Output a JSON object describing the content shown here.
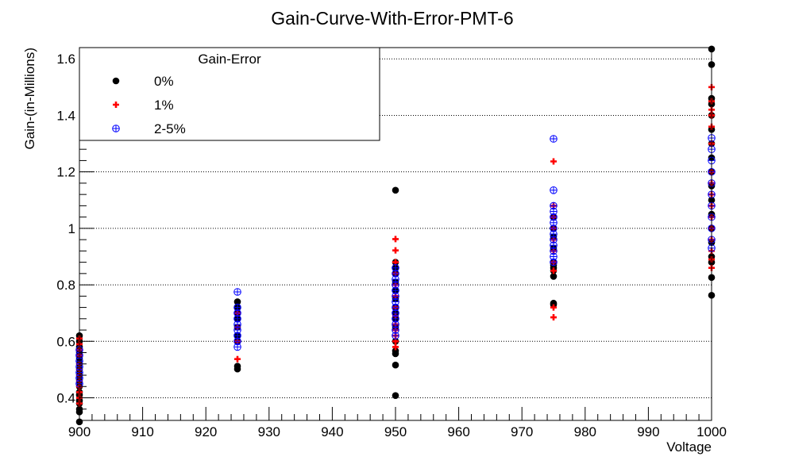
{
  "chart_data": {
    "type": "scatter",
    "title": "Gain-Curve-With-Error-PMT-6",
    "xlabel": "Voltage",
    "ylabel": "Gain-(in-Millions)",
    "xlim": [
      900,
      1000
    ],
    "ylim": [
      0.32,
      1.64
    ],
    "x_ticks": [
      900,
      910,
      920,
      930,
      940,
      950,
      960,
      970,
      980,
      990,
      1000
    ],
    "y_ticks": [
      0.4,
      0.6,
      0.8,
      1,
      1.2,
      1.4,
      1.6
    ],
    "y_tick_labels": [
      "0.4",
      "0.6",
      "0.8",
      "1",
      "1.2",
      "1.4",
      "1.6"
    ],
    "grid": "horizontal dotted",
    "legend": {
      "title": "Gain-Error",
      "placement": "top-left"
    },
    "series": [
      {
        "name": "0%",
        "marker": "filled-circle",
        "color": "#000000",
        "points": [
          [
            900,
            0.315
          ],
          [
            900,
            0.35
          ],
          [
            900,
            0.36
          ],
          [
            900,
            0.38
          ],
          [
            900,
            0.39
          ],
          [
            900,
            0.41
          ],
          [
            900,
            0.42
          ],
          [
            900,
            0.44
          ],
          [
            900,
            0.46
          ],
          [
            900,
            0.48
          ],
          [
            900,
            0.5
          ],
          [
            900,
            0.52
          ],
          [
            900,
            0.54
          ],
          [
            900,
            0.56
          ],
          [
            900,
            0.58
          ],
          [
            900,
            0.6
          ],
          [
            900,
            0.62
          ],
          [
            925,
            0.502
          ],
          [
            925,
            0.512
          ],
          [
            925,
            0.6
          ],
          [
            925,
            0.62
          ],
          [
            925,
            0.65
          ],
          [
            925,
            0.68
          ],
          [
            925,
            0.7
          ],
          [
            925,
            0.72
          ],
          [
            925,
            0.74
          ],
          [
            950,
            0.408
          ],
          [
            950,
            0.516
          ],
          [
            950,
            0.556
          ],
          [
            950,
            0.566
          ],
          [
            950,
            0.6
          ],
          [
            950,
            0.65
          ],
          [
            950,
            0.68
          ],
          [
            950,
            0.7
          ],
          [
            950,
            0.72
          ],
          [
            950,
            0.75
          ],
          [
            950,
            0.78
          ],
          [
            950,
            0.81
          ],
          [
            950,
            0.84
          ],
          [
            950,
            0.86
          ],
          [
            950,
            0.88
          ],
          [
            950,
            1.135
          ],
          [
            975,
            0.73
          ],
          [
            975,
            0.735
          ],
          [
            975,
            0.83
          ],
          [
            975,
            0.85
          ],
          [
            975,
            0.86
          ],
          [
            975,
            0.87
          ],
          [
            975,
            0.88
          ],
          [
            975,
            0.93
          ],
          [
            975,
            0.97
          ],
          [
            975,
            1.0
          ],
          [
            975,
            1.04
          ],
          [
            1000,
            0.763
          ],
          [
            1000,
            0.826
          ],
          [
            1000,
            0.88
          ],
          [
            1000,
            0.9
          ],
          [
            1000,
            0.95
          ],
          [
            1000,
            1.0
          ],
          [
            1000,
            1.05
          ],
          [
            1000,
            1.1
          ],
          [
            1000,
            1.15
          ],
          [
            1000,
            1.2
          ],
          [
            1000,
            1.25
          ],
          [
            1000,
            1.3
          ],
          [
            1000,
            1.35
          ],
          [
            1000,
            1.4
          ],
          [
            1000,
            1.44
          ],
          [
            1000,
            1.46
          ],
          [
            1000,
            1.58
          ],
          [
            1000,
            1.635
          ]
        ]
      },
      {
        "name": "1%",
        "marker": "plus",
        "color": "#ff0000",
        "points": [
          [
            900,
            0.38
          ],
          [
            900,
            0.4
          ],
          [
            900,
            0.42
          ],
          [
            900,
            0.44
          ],
          [
            900,
            0.46
          ],
          [
            900,
            0.48
          ],
          [
            900,
            0.5
          ],
          [
            900,
            0.52
          ],
          [
            900,
            0.55
          ],
          [
            900,
            0.57
          ],
          [
            900,
            0.59
          ],
          [
            900,
            0.61
          ],
          [
            925,
            0.537
          ],
          [
            925,
            0.6
          ],
          [
            925,
            0.65
          ],
          [
            925,
            0.7
          ],
          [
            950,
            0.58
          ],
          [
            950,
            0.6
          ],
          [
            950,
            0.62
          ],
          [
            950,
            0.64
          ],
          [
            950,
            0.66
          ],
          [
            950,
            0.69
          ],
          [
            950,
            0.72
          ],
          [
            950,
            0.76
          ],
          [
            950,
            0.8
          ],
          [
            950,
            0.84
          ],
          [
            950,
            0.88
          ],
          [
            950,
            0.922
          ],
          [
            950,
            0.962
          ],
          [
            975,
            0.685
          ],
          [
            975,
            0.72
          ],
          [
            975,
            0.85
          ],
          [
            975,
            0.88
          ],
          [
            975,
            0.92
          ],
          [
            975,
            0.96
          ],
          [
            975,
            1.0
          ],
          [
            975,
            1.04
          ],
          [
            975,
            1.08
          ],
          [
            975,
            1.237
          ],
          [
            1000,
            0.86
          ],
          [
            1000,
            0.89
          ],
          [
            1000,
            0.92
          ],
          [
            1000,
            0.96
          ],
          [
            1000,
            1.0
          ],
          [
            1000,
            1.04
          ],
          [
            1000,
            1.08
          ],
          [
            1000,
            1.12
          ],
          [
            1000,
            1.16
          ],
          [
            1000,
            1.2
          ],
          [
            1000,
            1.3
          ],
          [
            1000,
            1.36
          ],
          [
            1000,
            1.4
          ],
          [
            1000,
            1.42
          ],
          [
            1000,
            1.45
          ],
          [
            1000,
            1.5
          ]
        ]
      },
      {
        "name": "2-5%",
        "marker": "circle-plus",
        "color": "#0000ff",
        "points": [
          [
            900,
            0.45
          ],
          [
            900,
            0.47
          ],
          [
            900,
            0.49
          ],
          [
            900,
            0.51
          ],
          [
            900,
            0.53
          ],
          [
            900,
            0.55
          ],
          [
            900,
            0.57
          ],
          [
            925,
            0.58
          ],
          [
            925,
            0.6
          ],
          [
            925,
            0.62
          ],
          [
            925,
            0.64
          ],
          [
            925,
            0.66
          ],
          [
            925,
            0.68
          ],
          [
            925,
            0.7
          ],
          [
            925,
            0.72
          ],
          [
            925,
            0.775
          ],
          [
            950,
            0.62
          ],
          [
            950,
            0.64
          ],
          [
            950,
            0.66
          ],
          [
            950,
            0.68
          ],
          [
            950,
            0.7
          ],
          [
            950,
            0.72
          ],
          [
            950,
            0.74
          ],
          [
            950,
            0.76
          ],
          [
            950,
            0.78
          ],
          [
            950,
            0.8
          ],
          [
            950,
            0.82
          ],
          [
            950,
            0.84
          ],
          [
            950,
            0.86
          ],
          [
            975,
            0.88
          ],
          [
            975,
            0.9
          ],
          [
            975,
            0.92
          ],
          [
            975,
            0.94
          ],
          [
            975,
            0.96
          ],
          [
            975,
            0.98
          ],
          [
            975,
            1.0
          ],
          [
            975,
            1.02
          ],
          [
            975,
            1.04
          ],
          [
            975,
            1.06
          ],
          [
            975,
            1.08
          ],
          [
            975,
            1.135
          ],
          [
            975,
            1.317
          ],
          [
            1000,
            0.93
          ],
          [
            1000,
            0.96
          ],
          [
            1000,
            1.0
          ],
          [
            1000,
            1.04
          ],
          [
            1000,
            1.08
          ],
          [
            1000,
            1.12
          ],
          [
            1000,
            1.16
          ],
          [
            1000,
            1.2
          ],
          [
            1000,
            1.24
          ],
          [
            1000,
            1.28
          ],
          [
            1000,
            1.32
          ]
        ]
      }
    ]
  }
}
